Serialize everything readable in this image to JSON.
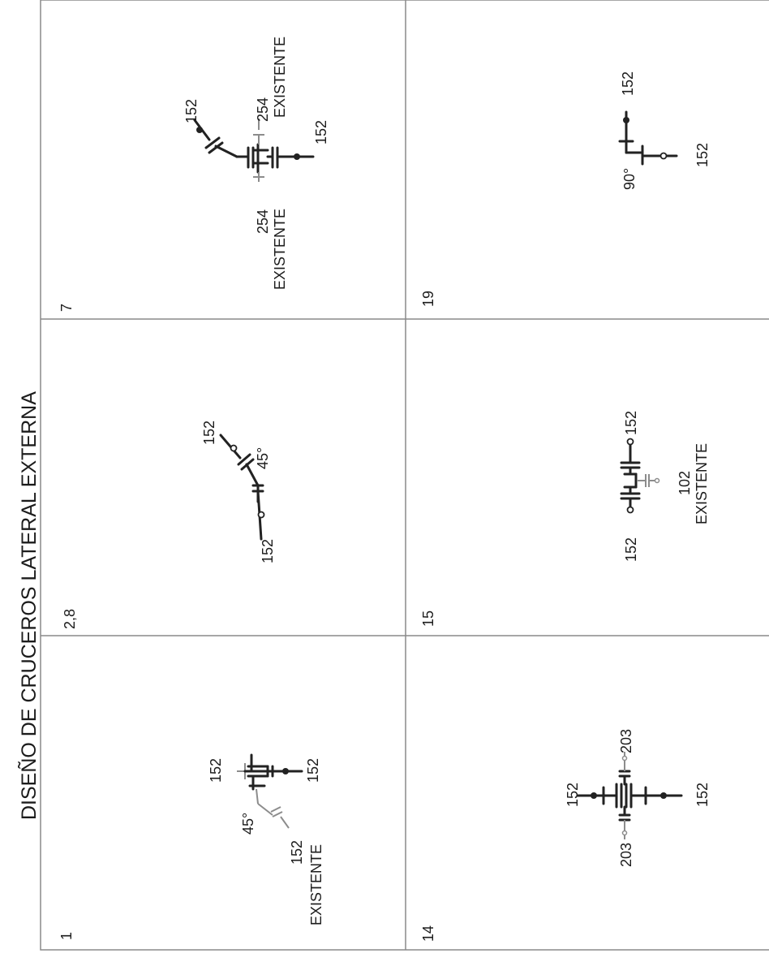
{
  "title": "DISEÑO DE CRUCEROS LATERAL EXTERNA",
  "cells": [
    {
      "number": "1",
      "labels": {
        "a": "152",
        "b": "152",
        "c": "45°",
        "d": "152",
        "e": "EXISTENTE"
      }
    },
    {
      "number": "2,8",
      "labels": {
        "a": "152",
        "b": "45°",
        "c": "152"
      }
    },
    {
      "number": "7",
      "labels": {
        "a": "152",
        "b": "254",
        "c": "EXISTENTE",
        "d": "152",
        "e": "254",
        "f": "EXISTENTE"
      }
    },
    {
      "number": "14",
      "labels": {
        "a": "152",
        "b": "203",
        "c": "203",
        "d": "152"
      }
    },
    {
      "number": "15",
      "labels": {
        "a": "152",
        "b": "102",
        "c": "EXISTENTE",
        "d": "152"
      }
    },
    {
      "number": "19",
      "labels": {
        "a": "152",
        "b": "90°",
        "c": "152"
      }
    }
  ]
}
